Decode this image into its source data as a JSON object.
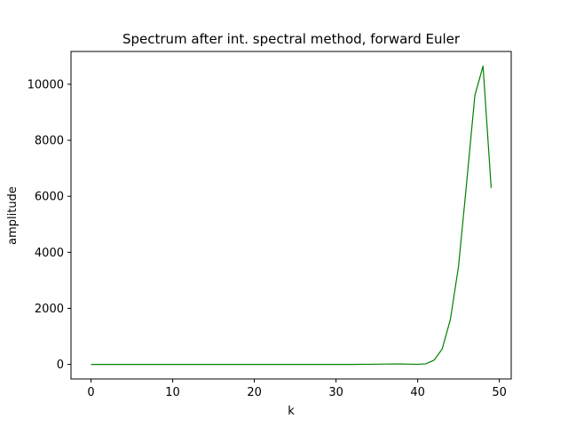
{
  "chart_data": {
    "type": "line",
    "title": "Spectrum after int.  spectral method, forward Euler",
    "xlabel": "k",
    "ylabel": "amplitude",
    "xlim": [
      -2.45,
      51.45
    ],
    "ylim": [
      -520,
      11170
    ],
    "xticks": [
      0,
      10,
      20,
      30,
      40,
      50
    ],
    "yticks": [
      0,
      2000,
      4000,
      6000,
      8000,
      10000
    ],
    "grid": false,
    "series": [
      {
        "color": "#008000",
        "x": [
          0,
          1,
          2,
          3,
          4,
          5,
          6,
          7,
          8,
          9,
          10,
          11,
          12,
          13,
          14,
          15,
          16,
          17,
          18,
          19,
          20,
          21,
          22,
          23,
          24,
          25,
          26,
          27,
          28,
          29,
          30,
          31,
          32,
          33,
          34,
          35,
          36,
          37,
          38,
          39,
          40,
          41,
          42,
          43,
          44,
          45,
          46,
          47,
          48,
          49
        ],
        "y": [
          0,
          0,
          0,
          0,
          0,
          0,
          0,
          0,
          0,
          0,
          0,
          0,
          0,
          0,
          0,
          0,
          0,
          0,
          0,
          0,
          0,
          0,
          0,
          0,
          0,
          0,
          0,
          0,
          0,
          0,
          0,
          0,
          0,
          2,
          5,
          8,
          12,
          15,
          14,
          8,
          5,
          20,
          150,
          550,
          1600,
          3500,
          6500,
          9600,
          10650,
          6300
        ]
      }
    ]
  }
}
